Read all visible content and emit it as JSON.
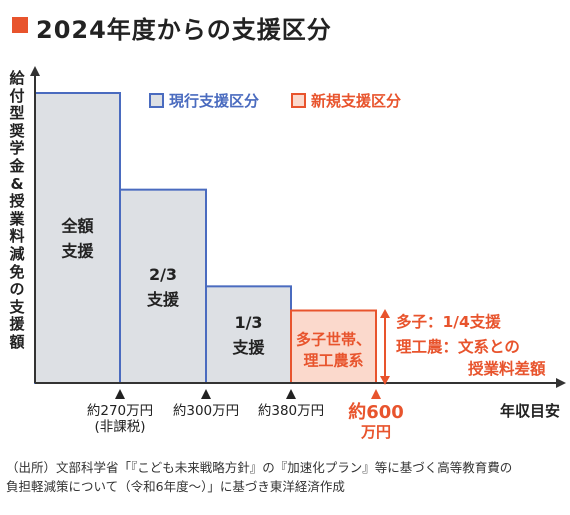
{
  "title": "2024年度からの支援区分",
  "colors": {
    "accent": "#e8542d",
    "current_border": "#4a6bbf",
    "current_fill": "#dde0e4",
    "new_border": "#e8542d",
    "new_fill": "#fbd9cc",
    "axis": "#333333"
  },
  "chart_data": {
    "type": "bar",
    "title": "2024年度からの支援区分",
    "ylabel": "給付型奨学金&授業料減免の支援額",
    "xlabel": "年収目安",
    "legend": [
      {
        "label": "現行支援区分",
        "type": "current"
      },
      {
        "label": "新規支援区分",
        "type": "new"
      }
    ],
    "legend_placement": "top-right",
    "categories": [
      "全額支援",
      "2/3支援",
      "1/3支援",
      "多子世帯、理工農系"
    ],
    "tiers": [
      {
        "type": "current",
        "label_lines": [
          "全額",
          "支援"
        ],
        "support_fraction": 1.0,
        "income_to": "約270万円"
      },
      {
        "type": "current",
        "label_lines": [
          "2/3",
          "支援"
        ],
        "support_fraction": 0.6667,
        "income_to": "約300万円"
      },
      {
        "type": "current",
        "label_lines": [
          "1/3",
          "支援"
        ],
        "support_fraction": 0.3333,
        "income_to": "約380万円"
      },
      {
        "type": "new",
        "label_lines": [
          "多子世帯、",
          "理工農系"
        ],
        "support_fraction": 0.25,
        "income_to": "約600万円"
      }
    ],
    "x_ticks": [
      {
        "lines": [
          "約270万円",
          "(非課税)"
        ],
        "highlight": false
      },
      {
        "lines": [
          "約300万円"
        ],
        "highlight": false
      },
      {
        "lines": [
          "約380万円"
        ],
        "highlight": false
      },
      {
        "lines": [
          "約600",
          "万円"
        ],
        "highlight": true
      }
    ],
    "annotations": [
      "多子：1/4支援",
      "理工農：文系との",
      "授業料差額"
    ]
  },
  "source_lines": [
    "（出所）文部科学省「『こども未来戦略方針』の『加速化プラン』等に基づく高等教育費の",
    "負担軽減策について（令和6年度〜）」に基づき東洋経済作成"
  ]
}
